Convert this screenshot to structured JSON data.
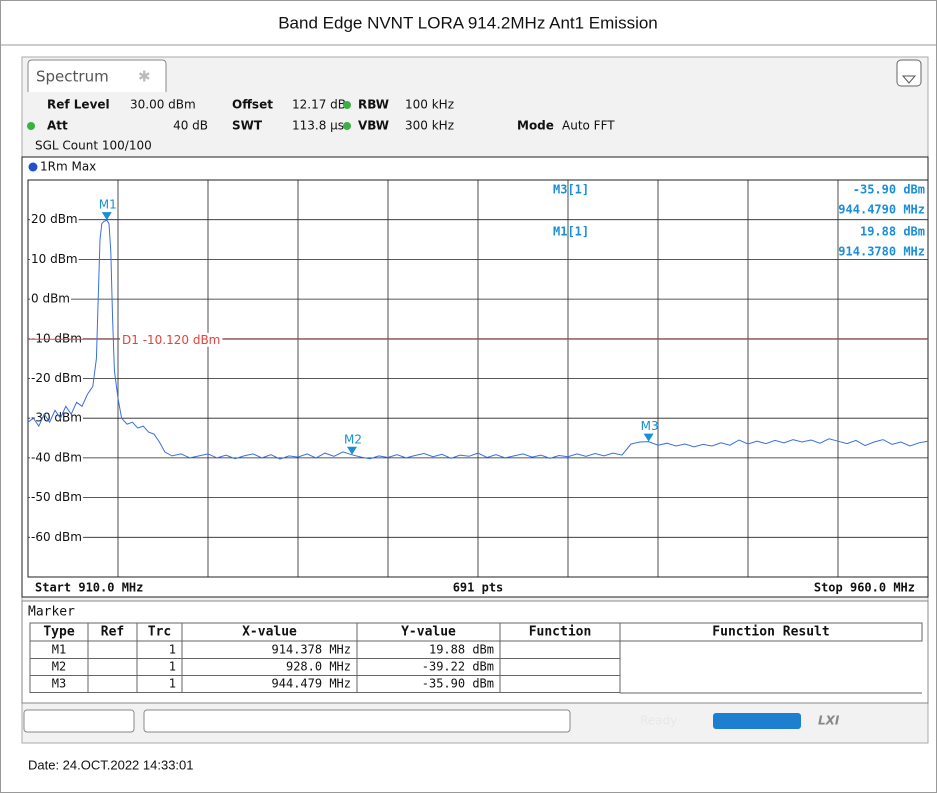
{
  "header": {
    "title": "Band Edge NVNT LORA 914.2MHz Ant1 Emission"
  },
  "tab": "Spectrum",
  "settings": {
    "ref_level_label": "Ref Level",
    "ref_level": "30.00 dBm",
    "offset_label": "Offset",
    "offset": "12.17 dB",
    "rbw_label": "RBW",
    "rbw": "100 kHz",
    "att_label": "Att",
    "att": "40 dB",
    "swt_label": "SWT",
    "swt": "113.8 µs",
    "vbw_label": "VBW",
    "vbw": "300 kHz",
    "mode_label": "Mode",
    "mode": "Auto FFT",
    "count": "SGL Count 100/100"
  },
  "chart_data": {
    "type": "line",
    "xlim": [
      910,
      960
    ],
    "ylim": [
      -70,
      30
    ],
    "xticks": [
      915,
      920,
      925,
      930,
      935,
      940,
      945,
      950,
      955
    ],
    "yticks": [
      {
        "value": 20,
        "label": "20 dBm"
      },
      {
        "value": 10,
        "label": "10 dBm"
      },
      {
        "value": 0,
        "label": "0 dBm"
      },
      {
        "value": -10,
        "label": "-10 dBm"
      },
      {
        "value": -20,
        "label": "-20 dBm"
      },
      {
        "value": -30,
        "label": "-30 dBm"
      },
      {
        "value": -40,
        "label": "-40 dBm"
      },
      {
        "value": -50,
        "label": "-50 dBm"
      },
      {
        "value": -60,
        "label": "-60 dBm"
      }
    ],
    "grid": true,
    "series": [
      {
        "name": "1Rm Max",
        "color": "#3a6fe0",
        "x": [
          910.0,
          910.3,
          910.6,
          910.9,
          911.2,
          911.5,
          911.8,
          912.1,
          912.4,
          912.7,
          913.0,
          913.3,
          913.6,
          913.8,
          913.9,
          914.0,
          914.1,
          914.2,
          914.378,
          914.5,
          914.6,
          914.7,
          914.8,
          915.0,
          915.2,
          915.5,
          915.8,
          916.1,
          916.4,
          916.7,
          917.0,
          917.3,
          917.6,
          918.0,
          918.5,
          919,
          919.5,
          920,
          920.5,
          921,
          921.5,
          922,
          922.5,
          923,
          923.5,
          924,
          924.5,
          925,
          925.5,
          926,
          926.5,
          927,
          927.5,
          928.0,
          928.5,
          929,
          929.5,
          930,
          930.5,
          931,
          931.5,
          932,
          932.5,
          933,
          933.5,
          934,
          934.5,
          935,
          935.5,
          936,
          936.5,
          937,
          937.5,
          938,
          938.5,
          939,
          939.5,
          940,
          940.5,
          941,
          941.5,
          942,
          942.5,
          943,
          943.5,
          944,
          944.479,
          945,
          945.5,
          946,
          946.5,
          947,
          947.5,
          948,
          948.5,
          949,
          949.5,
          950,
          950.5,
          951,
          951.5,
          952,
          952.5,
          953,
          953.5,
          954,
          954.5,
          955,
          955.5,
          956,
          956.5,
          957,
          957.5,
          958,
          958.5,
          959,
          959.5,
          960
        ],
        "values": [
          -31,
          -30,
          -32,
          -29,
          -31,
          -28,
          -30,
          -27,
          -29,
          -26,
          -27,
          -24,
          -22,
          -15,
          0,
          15,
          19,
          19.5,
          19.88,
          19,
          12,
          -5,
          -18,
          -25,
          -30,
          -31.5,
          -31,
          -32.5,
          -32,
          -33.5,
          -34,
          -36,
          -38.5,
          -39.5,
          -39,
          -40,
          -39.5,
          -39,
          -40,
          -39.3,
          -40.2,
          -39.5,
          -39,
          -40,
          -39.2,
          -40.3,
          -39.5,
          -39.8,
          -39,
          -40,
          -38.8,
          -39.6,
          -38.5,
          -39.22,
          -39.8,
          -40.2,
          -39.5,
          -39.9,
          -39.2,
          -40,
          -39.4,
          -38.9,
          -39.7,
          -39.1,
          -40.1,
          -39.3,
          -39.6,
          -38.8,
          -39.9,
          -39.2,
          -40,
          -39.5,
          -39,
          -39.8,
          -39.3,
          -40.1,
          -39.4,
          -39.7,
          -39,
          -39.6,
          -38.9,
          -39.5,
          -38.8,
          -39.3,
          -36.5,
          -36,
          -35.9,
          -36.8,
          -36.3,
          -37,
          -36.5,
          -37.2,
          -36.6,
          -37,
          -36.2,
          -36.8,
          -35.5,
          -36.5,
          -35.8,
          -36.4,
          -35.6,
          -36.2,
          -35.4,
          -36,
          -35.5,
          -36.3,
          -35.2,
          -35.8,
          -36.4,
          -35.6,
          -36.9,
          -36,
          -35.4,
          -36.6,
          -36,
          -37,
          -36.2,
          -35.8
        ]
      }
    ],
    "markers": [
      {
        "name": "M1",
        "x": 914.378,
        "y": 19.88
      },
      {
        "name": "M2",
        "x": 928.0,
        "y": -39.22
      },
      {
        "name": "M3",
        "x": 944.479,
        "y": -35.9
      }
    ],
    "marker_color": "#1a8fd8",
    "display_line": {
      "value": -10.12,
      "label": "D1 -10.120 dBm",
      "color": "#e8403a"
    },
    "readout": [
      {
        "label": "M3[1]",
        "value": "-35.90 dBm",
        "freq": "944.4790 MHz"
      },
      {
        "label": "M1[1]",
        "value": "19.88 dBm",
        "freq": "914.3780 MHz"
      }
    ],
    "footer": {
      "start": "Start 910.0 MHz",
      "points": "691 pts",
      "stop": "Stop 960.0 MHz"
    }
  },
  "marker_table": {
    "title": "Marker",
    "columns": [
      "Type",
      "Ref",
      "Trc",
      "X-value",
      "Y-value",
      "Function",
      "Function Result"
    ],
    "rows": [
      {
        "type": "M1",
        "trc": "1",
        "x_value": "914.378 MHz",
        "y_value": "19.88 dBm"
      },
      {
        "type": "M2",
        "trc": "1",
        "x_value": "928.0 MHz",
        "y_value": "-39.22 dBm"
      },
      {
        "type": "M3",
        "trc": "1",
        "x_value": "944.479 MHz",
        "y_value": "-35.90 dBm"
      }
    ]
  },
  "status": "Ready",
  "date": "Date: 24.OCT.2022 14:33:01"
}
